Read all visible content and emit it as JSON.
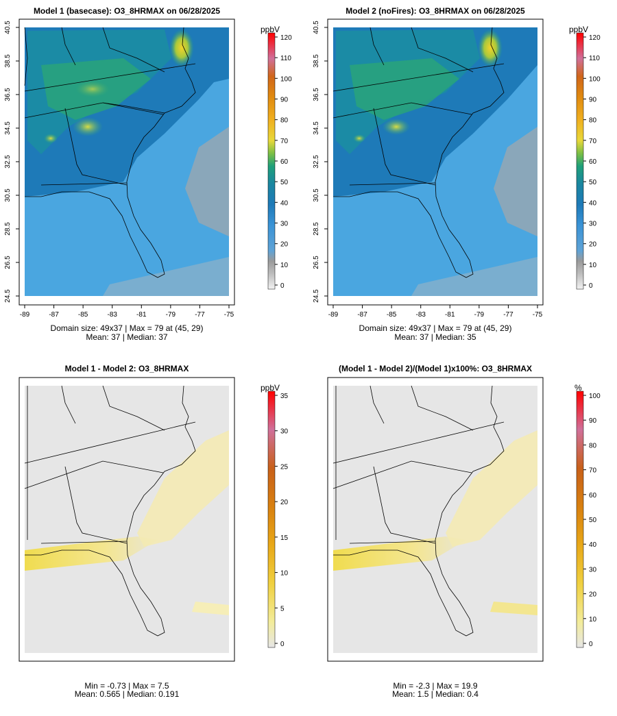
{
  "chart_data": [
    {
      "type": "heatmap",
      "id": "p1",
      "title": "Model 1 (basecase): O3_8HRMAX on 06/28/2025",
      "unit": "ppbV",
      "xlim": [
        -89,
        -75
      ],
      "ylim": [
        24.5,
        40.5
      ],
      "x_ticks": [
        "-89",
        "-87",
        "-85",
        "-83",
        "-81",
        "-79",
        "-77",
        "-75"
      ],
      "y_ticks": [
        "24.5",
        "26.5",
        "28.5",
        "30.5",
        "32.5",
        "34.5",
        "36.5",
        "38.5",
        "40.5"
      ],
      "colorbar_ticks": [
        "0",
        "10",
        "20",
        "30",
        "40",
        "50",
        "60",
        "70",
        "80",
        "90",
        "100",
        "110",
        "120"
      ],
      "colorbar_range": [
        0,
        120
      ],
      "caption_line1": "Domain size: 49x37 | Max = 79 at (45, 29)",
      "caption_line2": "Mean: 37 |  Median: 37",
      "domain_size": "49x37",
      "max": 79,
      "mean": 37,
      "median": 37
    },
    {
      "type": "heatmap",
      "id": "p2",
      "title": "Model 2 (noFires): O3_8HRMAX on 06/28/2025",
      "unit": "ppbV",
      "xlim": [
        -89,
        -75
      ],
      "ylim": [
        24.5,
        40.5
      ],
      "x_ticks": [
        "-89",
        "-87",
        "-85",
        "-83",
        "-81",
        "-79",
        "-77",
        "-75"
      ],
      "y_ticks": [
        "24.5",
        "26.5",
        "28.5",
        "30.5",
        "32.5",
        "34.5",
        "36.5",
        "38.5",
        "40.5"
      ],
      "colorbar_ticks": [
        "0",
        "10",
        "20",
        "30",
        "40",
        "50",
        "60",
        "70",
        "80",
        "90",
        "100",
        "110",
        "120"
      ],
      "colorbar_range": [
        0,
        120
      ],
      "caption_line1": "Domain size: 49x37 | Max = 79 at (45, 29)",
      "caption_line2": "Mean: 37 |  Median: 35",
      "domain_size": "49x37",
      "max": 79,
      "mean": 37,
      "median": 35
    },
    {
      "type": "heatmap",
      "id": "p3",
      "title": "Model 1 - Model 2: O3_8HRMAX",
      "unit": "ppbV",
      "colorbar_ticks": [
        "0",
        "5",
        "10",
        "15",
        "20",
        "25",
        "30",
        "35"
      ],
      "colorbar_range": [
        0,
        35
      ],
      "caption_line1": "Min = -0.73 | Max = 7.5",
      "caption_line2": "Mean: 0.565 |  Median: 0.191",
      "min": -0.73,
      "max": 7.5,
      "mean": 0.565,
      "median": 0.191
    },
    {
      "type": "heatmap",
      "id": "p4",
      "title": "(Model 1 - Model 2)/(Model 1)x100%: O3_8HRMAX",
      "unit": "%",
      "colorbar_ticks": [
        "0",
        "10",
        "20",
        "30",
        "40",
        "50",
        "60",
        "70",
        "80",
        "90",
        "100"
      ],
      "colorbar_range": [
        0,
        100
      ],
      "caption_line1": "Min = -2.3 | Max = 19.9",
      "caption_line2": "Mean: 1.5 |  Median: 0.4",
      "min": -2.3,
      "max": 19.9,
      "mean": 1.5,
      "median": 0.4
    }
  ]
}
